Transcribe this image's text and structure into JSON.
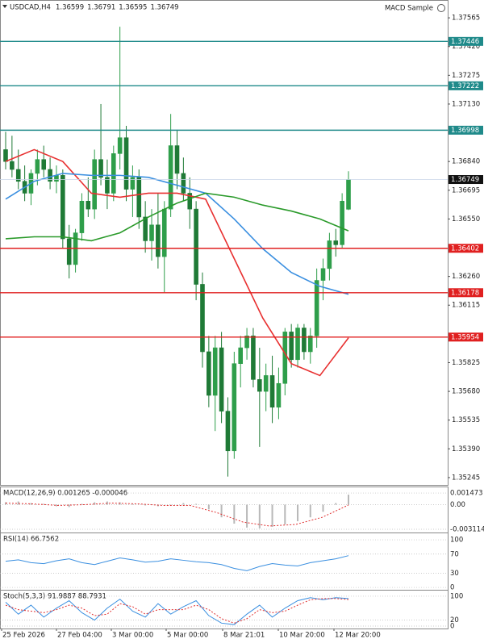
{
  "chart_data": {
    "type": "candlestick",
    "title": "USDCAD,H4",
    "ohlc_header": [
      1.36599,
      1.36791,
      1.36595,
      1.36749
    ],
    "expert": "MACD Sample",
    "ylim": [
      1.35204,
      1.37655
    ],
    "yticks": [
      1.37565,
      {
        "value": 1.3742,
        "label": "1.37420"
      },
      1.37275,
      {
        "value": 1.3713,
        "label": "1.37130"
      },
      {
        "value": 1.3684,
        "label": "1.36840"
      },
      1.36695,
      {
        "value": 1.3655,
        "label": "1.36550"
      },
      {
        "value": 1.3626,
        "label": "1.36260"
      },
      1.36115,
      1.35825,
      {
        "value": 1.3568,
        "label": "1.35680"
      },
      1.35535,
      {
        "value": 1.3539,
        "label": "1.35390"
      },
      1.35245
    ],
    "levels": [
      {
        "value": 1.37446,
        "color": "#1f8a8a"
      },
      {
        "value": 1.37222,
        "color": "#1f8a8a"
      },
      {
        "value": 1.36998,
        "color": "#1f8a8a"
      },
      {
        "value": 1.36402,
        "color": "#e02020"
      },
      {
        "value": 1.36178,
        "color": "#e02020"
      },
      {
        "value": 1.35954,
        "color": "#e02020"
      }
    ],
    "last_price": 1.36749,
    "bull_color": "#2e9e4a",
    "bear_color": "#1f7a36",
    "candles": [
      [
        1.369,
        1.3699,
        1.368,
        1.3684
      ],
      [
        1.3684,
        1.3697,
        1.3676,
        1.368
      ],
      [
        1.368,
        1.369,
        1.367,
        1.3674
      ],
      [
        1.3674,
        1.3682,
        1.3664,
        1.3668
      ],
      [
        1.3668,
        1.368,
        1.3662,
        1.3678
      ],
      [
        1.3678,
        1.369,
        1.3672,
        1.3685
      ],
      [
        1.3685,
        1.3692,
        1.3676,
        1.368
      ],
      [
        1.368,
        1.3686,
        1.367,
        1.3674
      ],
      [
        1.3674,
        1.3682,
        1.3668,
        1.3677
      ],
      [
        1.3677,
        1.368,
        1.364,
        1.3645
      ],
      [
        1.3645,
        1.3652,
        1.3625,
        1.3632
      ],
      [
        1.3632,
        1.365,
        1.3628,
        1.3648
      ],
      [
        1.3648,
        1.3668,
        1.3644,
        1.3664
      ],
      [
        1.3664,
        1.3676,
        1.3656,
        1.366
      ],
      [
        1.366,
        1.369,
        1.3655,
        1.3685
      ],
      [
        1.3685,
        1.3713,
        1.3672,
        1.3676
      ],
      [
        1.3676,
        1.3685,
        1.366,
        1.3668
      ],
      [
        1.3668,
        1.3692,
        1.3664,
        1.3688
      ],
      [
        1.3688,
        1.3752,
        1.368,
        1.3696
      ],
      [
        1.3696,
        1.3702,
        1.3664,
        1.367
      ],
      [
        1.367,
        1.3682,
        1.3656,
        1.3676
      ],
      [
        1.3676,
        1.368,
        1.365,
        1.3656
      ],
      [
        1.3656,
        1.3664,
        1.3638,
        1.3644
      ],
      [
        1.3644,
        1.366,
        1.3634,
        1.3652
      ],
      [
        1.3652,
        1.3668,
        1.363,
        1.3636
      ],
      [
        1.3636,
        1.3664,
        1.3618,
        1.366
      ],
      [
        1.366,
        1.3708,
        1.3656,
        1.3692
      ],
      [
        1.3692,
        1.37,
        1.367,
        1.3678
      ],
      [
        1.3678,
        1.3686,
        1.3664,
        1.3668
      ],
      [
        1.3668,
        1.3676,
        1.365,
        1.366
      ],
      [
        1.366,
        1.3664,
        1.3614,
        1.3622
      ],
      [
        1.3622,
        1.3628,
        1.358,
        1.3588
      ],
      [
        1.3588,
        1.3596,
        1.356,
        1.3566
      ],
      [
        1.3566,
        1.3596,
        1.3548,
        1.359
      ],
      [
        1.359,
        1.3598,
        1.3552,
        1.3558
      ],
      [
        1.3558,
        1.3565,
        1.3525,
        1.3538
      ],
      [
        1.3538,
        1.3588,
        1.3534,
        1.3582
      ],
      [
        1.3582,
        1.3596,
        1.357,
        1.359
      ],
      [
        1.359,
        1.36,
        1.3584,
        1.3596
      ],
      [
        1.3596,
        1.36,
        1.357,
        1.3574
      ],
      [
        1.3574,
        1.359,
        1.354,
        1.3568
      ],
      [
        1.3568,
        1.3582,
        1.3558,
        1.3576
      ],
      [
        1.3576,
        1.3586,
        1.3552,
        1.356
      ],
      [
        1.356,
        1.358,
        1.3554,
        1.3572
      ],
      [
        1.3572,
        1.36,
        1.3566,
        1.3598
      ],
      [
        1.3598,
        1.3602,
        1.358,
        1.3584
      ],
      [
        1.3584,
        1.3602,
        1.358,
        1.36
      ],
      [
        1.36,
        1.3602,
        1.3584,
        1.3588
      ],
      [
        1.3588,
        1.36,
        1.3582,
        1.3596
      ],
      [
        1.3596,
        1.363,
        1.359,
        1.3624
      ],
      [
        1.3624,
        1.3635,
        1.3614,
        1.363
      ],
      [
        1.363,
        1.3648,
        1.3624,
        1.3644
      ],
      [
        1.3644,
        1.365,
        1.3636,
        1.3642
      ],
      [
        1.3642,
        1.3668,
        1.364,
        1.3664
      ],
      [
        1.36599,
        1.36791,
        1.36595,
        1.36749
      ]
    ],
    "moving_averages": [
      {
        "color": "#e83030",
        "values": [
          1.3684,
          1.369,
          1.3684,
          1.3668,
          1.3666,
          1.3668,
          1.3668,
          1.3665,
          1.3635,
          1.3605,
          1.3582,
          1.3576,
          1.3595
        ]
      },
      {
        "color": "#3a8fe0",
        "values": [
          1.3665,
          1.3674,
          1.3678,
          1.3677,
          1.3677,
          1.3676,
          1.3672,
          1.3668,
          1.3655,
          1.364,
          1.3628,
          1.3621,
          1.3617
        ]
      },
      {
        "color": "#2a9a2a",
        "values": [
          1.3645,
          1.3646,
          1.3646,
          1.3644,
          1.3648,
          1.3656,
          1.3663,
          1.3668,
          1.3666,
          1.3662,
          1.3659,
          1.3655,
          1.3649
        ]
      }
    ],
    "panels": [
      {
        "title": "MACD(12,26,9) 0.001265 -0.000046",
        "ylim": [
          -0.00352,
          0.00209
        ],
        "yticks": [
          0.001473,
          {
            "value": 0,
            "label": "0.00"
          },
          -0.003114
        ],
        "series": [
          {
            "type": "histogram",
            "color": "#b8b8b8",
            "values": [
              0.0003,
              0.0004,
              0.0002,
              0.0001,
              -0.0002,
              -0.0003,
              0.0001,
              0.0003,
              0.0004,
              0.0003,
              0.0001,
              -0.0001,
              -0.0002,
              0,
              0.0002,
              0.0001,
              -0.0006,
              -0.0016,
              -0.0024,
              -0.0029,
              -0.003,
              -0.0028,
              -0.0025,
              -0.0021,
              -0.0016,
              -0.0009,
              0.0002,
              0.001265
            ]
          },
          {
            "type": "dotted",
            "color": "#e03030",
            "values": [
              0.0002,
              0.0001,
              -0.0001,
              0,
              0.0002,
              0.0001,
              -0.0001,
              -0.0001,
              -0.001,
              -0.0022,
              -0.0027,
              -0.0025,
              -0.0016,
              -4.6e-05
            ]
          }
        ]
      },
      {
        "title": "RSI(14) 66.7562",
        "ylim": [
          -5,
          112
        ],
        "yticks": [
          100,
          70,
          30,
          0
        ],
        "series": [
          {
            "type": "line",
            "color": "#3a8fe0",
            "values": [
              55,
              58,
              52,
              50,
              56,
              60,
              52,
              48,
              55,
              62,
              58,
              53,
              55,
              60,
              57,
              54,
              52,
              48,
              40,
              35,
              44,
              50,
              47,
              45,
              52,
              56,
              60,
              66.7562
            ]
          }
        ]
      },
      {
        "title": "Stoch(5,3,3) 91.9887 88.7931",
        "ylim": [
          -8,
          116
        ],
        "yticks": [
          100,
          20,
          0
        ],
        "series": [
          {
            "type": "line",
            "color": "#3a8fe0",
            "values": [
              80,
              40,
              70,
              30,
              60,
              85,
              45,
              20,
              60,
              90,
              50,
              30,
              75,
              40,
              65,
              85,
              35,
              10,
              5,
              40,
              70,
              30,
              60,
              85,
              95,
              88,
              95,
              91.9887
            ]
          },
          {
            "type": "dotted",
            "color": "#e03030",
            "values": [
              70,
              55,
              50,
              45,
              55,
              70,
              60,
              35,
              40,
              75,
              65,
              40,
              55,
              55,
              55,
              70,
              55,
              25,
              10,
              25,
              55,
              45,
              50,
              70,
              88,
              92,
              92,
              88.7931
            ]
          }
        ]
      }
    ],
    "time_labels": [
      "25 Feb 2026",
      "27 Feb 04:00",
      "3 Mar 00:00",
      "5 Mar 00:00",
      "8 Mar 21:01",
      "10 Mar 20:00",
      "12 Mar 20:00"
    ]
  }
}
